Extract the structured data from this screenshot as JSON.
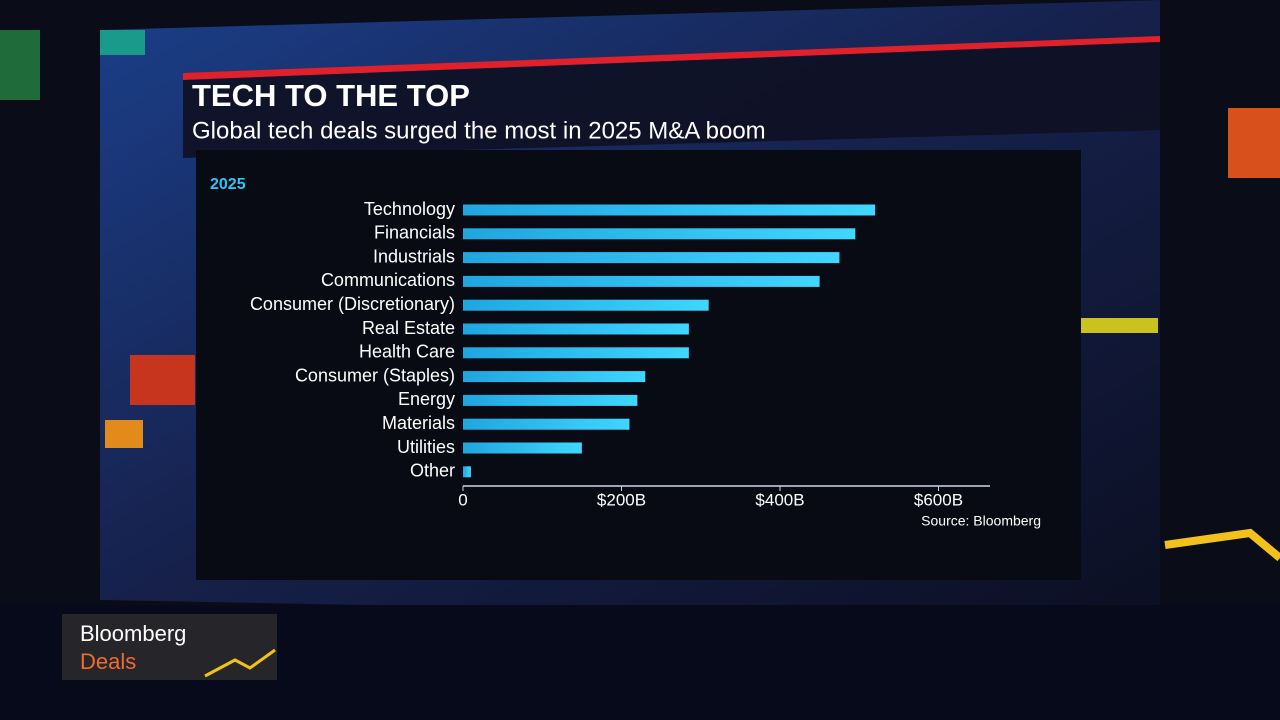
{
  "chart_data": {
    "type": "barh",
    "title": "TECH TO THE TOP",
    "subtitle": "Global tech deals surged the most in 2025 M&A boom",
    "series_label": "2025",
    "source": "Source: Bloomberg",
    "categories": [
      "Technology",
      "Financials",
      "Industrials",
      "Communications",
      "Consumer (Discretionary)",
      "Real Estate",
      "Health Care",
      "Consumer (Staples)",
      "Energy",
      "Materials",
      "Utilities",
      "Other"
    ],
    "values": [
      520,
      495,
      475,
      450,
      310,
      285,
      285,
      230,
      220,
      210,
      150,
      10
    ],
    "color": "#2ec6f7",
    "xlim": [
      0,
      665
    ],
    "xticks": [
      0,
      {
        "value": 200,
        "label": "$200B"
      },
      {
        "value": 400,
        "label": "$400B"
      },
      {
        "value": 600,
        "label": "$600B"
      }
    ]
  },
  "logo": {
    "line1": "Bloomberg",
    "line2": "Deals"
  }
}
